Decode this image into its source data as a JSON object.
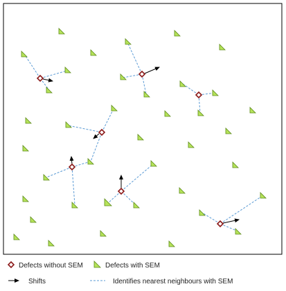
{
  "legend": {
    "defects_without_sem": "Defects without SEM",
    "defects_with_sem": "Defects with SEM",
    "shifts": "Shifts",
    "nearest_neighbours": "Identifies nearest neighbours with SEM"
  },
  "colors": {
    "frame": "#000000",
    "defect_without_sem_stroke": "#8b1a1a",
    "defect_with_sem_fill": "#b6e35a",
    "defect_with_sem_stroke": "#5c8a1a",
    "shift_arrow": "#000000",
    "neighbour_line": "#5b9bd5"
  },
  "icons": {
    "defect_without_sem": "diamond-marker",
    "defect_with_sem": "right-triangle-marker",
    "shift": "arrow"
  }
}
